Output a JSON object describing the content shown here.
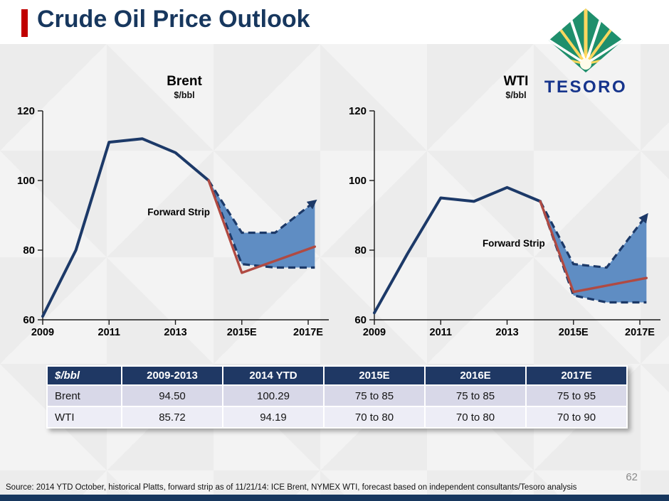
{
  "header": {
    "title": "Crude Oil Price Outlook",
    "brand": "TESORO"
  },
  "colors": {
    "accent_red": "#C00000",
    "title_navy": "#17375E",
    "line_navy": "#1C3968",
    "band_blue": "#5F8DC3",
    "forecast_red": "#B04A42",
    "table_header_bg": "#1F3864",
    "table_row_a_bg": "#D8D8E8",
    "table_row_b_bg": "#EDEDF6",
    "logo_green": "#1F8F6C",
    "logo_blue": "#16348C"
  },
  "chart_data": [
    {
      "type": "line",
      "title": "Brent",
      "subtitle": "$/bbl",
      "annotation": "Forward Strip",
      "xlim": [
        2009,
        2017.45
      ],
      "ylim": [
        60,
        120
      ],
      "y_ticks": [
        120,
        100,
        80,
        60
      ],
      "x_ticks": [
        {
          "x": 2009,
          "label": "2009"
        },
        {
          "x": 2011,
          "label": "2011"
        },
        {
          "x": 2013,
          "label": "2013"
        },
        {
          "x": 2015,
          "label": "2015E"
        },
        {
          "x": 2017,
          "label": "2017E"
        }
      ],
      "series": [
        {
          "name": "historical",
          "x": [
            2009,
            2010,
            2011,
            2012,
            2013,
            2014
          ],
          "y": [
            61,
            80,
            111,
            112,
            108,
            100
          ]
        },
        {
          "name": "forward-strip-upper",
          "x": [
            2014,
            2015,
            2016,
            2017.2
          ],
          "y": [
            100,
            85,
            85,
            94
          ]
        },
        {
          "name": "forward-strip-lower",
          "x": [
            2014,
            2015,
            2016,
            2017.2
          ],
          "y": [
            100,
            76,
            75,
            75
          ]
        },
        {
          "name": "forecast",
          "x": [
            2014,
            2015,
            2017.2
          ],
          "y": [
            100,
            73.5,
            81
          ]
        }
      ],
      "band": {
        "upper": "forward-strip-upper",
        "lower": "forward-strip-lower"
      },
      "annotation_pos": {
        "x": 2013.1,
        "y": 90
      }
    },
    {
      "type": "line",
      "title": "WTI",
      "subtitle": "$/bbl",
      "annotation": "Forward Strip",
      "xlim": [
        2009,
        2017.45
      ],
      "ylim": [
        60,
        120
      ],
      "y_ticks": [
        120,
        100,
        80,
        60
      ],
      "x_ticks": [
        {
          "x": 2009,
          "label": "2009"
        },
        {
          "x": 2011,
          "label": "2011"
        },
        {
          "x": 2013,
          "label": "2013"
        },
        {
          "x": 2015,
          "label": "2015E"
        },
        {
          "x": 2017,
          "label": "2017E"
        }
      ],
      "series": [
        {
          "name": "historical",
          "x": [
            2009,
            2010,
            2011,
            2012,
            2013,
            2014
          ],
          "y": [
            62,
            79,
            95,
            94,
            98,
            94
          ]
        },
        {
          "name": "forward-strip-upper",
          "x": [
            2014,
            2015,
            2016,
            2017.2
          ],
          "y": [
            94,
            76,
            75,
            90
          ]
        },
        {
          "name": "forward-strip-lower",
          "x": [
            2014,
            2015,
            2016,
            2017.2
          ],
          "y": [
            94,
            67,
            65,
            65
          ]
        },
        {
          "name": "forecast",
          "x": [
            2014,
            2015,
            2017.2
          ],
          "y": [
            94,
            68,
            72
          ]
        }
      ],
      "band": {
        "upper": "forward-strip-upper",
        "lower": "forward-strip-lower"
      },
      "annotation_pos": {
        "x": 2013.2,
        "y": 81
      }
    }
  ],
  "table": {
    "headers": [
      "$/bbl",
      "2009-2013",
      "2014 YTD",
      "2015E",
      "2016E",
      "2017E"
    ],
    "rows": [
      {
        "label": "Brent",
        "values": [
          "94.50",
          "100.29",
          "75 to 85",
          "75 to 85",
          "75 to 95"
        ]
      },
      {
        "label": "WTI",
        "values": [
          "85.72",
          "94.19",
          "70 to 80",
          "70 to 80",
          "70 to 90"
        ]
      }
    ]
  },
  "footer": {
    "source": "Source: 2014 YTD October, historical Platts, forward strip as of 11/21/14: ICE Brent, NYMEX WTI, forecast based on independent consultants/Tesoro analysis",
    "page_number": "62"
  }
}
